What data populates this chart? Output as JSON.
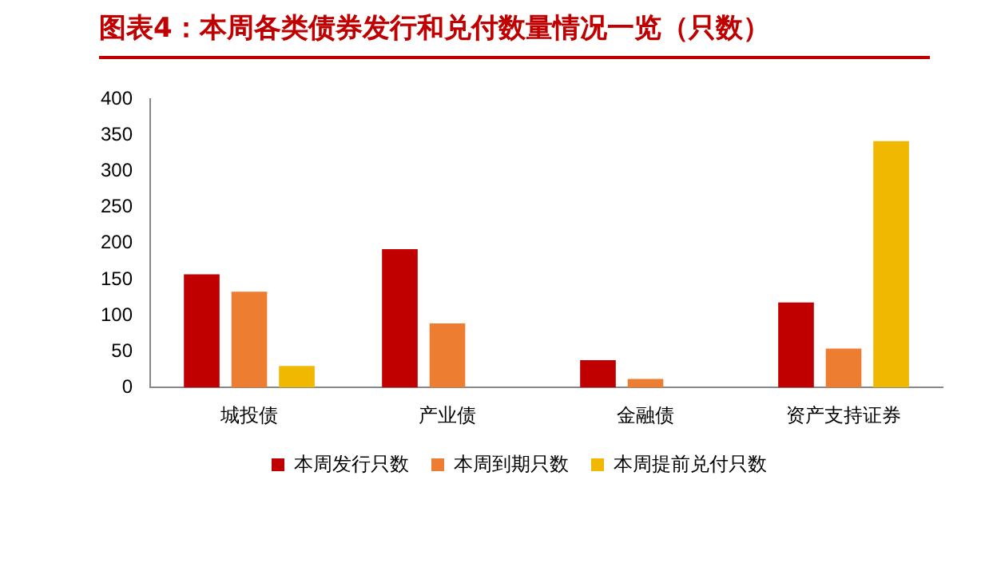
{
  "chart_data": {
    "type": "bar",
    "title": "图表4：本周各类债券发行和兑付数量情况一览（只数）",
    "categories": [
      "城投债",
      "产业债",
      "金融债",
      "资产支持证券"
    ],
    "series": [
      {
        "name": "本周发行只数",
        "color": "#c00000",
        "values": [
          157,
          192,
          38,
          118
        ]
      },
      {
        "name": "本周到期只数",
        "color": "#ed7d31",
        "values": [
          133,
          89,
          12,
          54
        ]
      },
      {
        "name": "本周提前兑付只数",
        "color": "#f0b800",
        "values": [
          30,
          0,
          0,
          342
        ]
      }
    ],
    "ylim": [
      0,
      400
    ],
    "yticks": [
      0,
      50,
      100,
      150,
      200,
      250,
      300,
      350,
      400
    ],
    "grid": false,
    "legend": "bottom"
  }
}
